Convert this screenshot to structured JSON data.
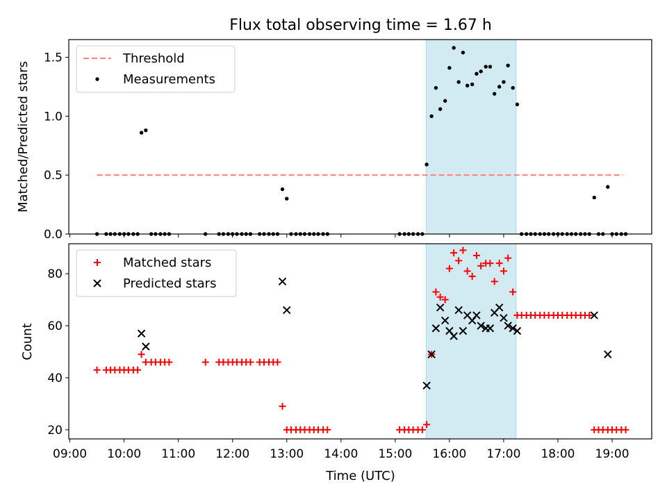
{
  "chart_data": {
    "title": "Flux total observing time = 1.67 h",
    "xlabel": "Time (UTC)",
    "x_tick_labels": [
      "09:00",
      "10:00",
      "11:00",
      "12:00",
      "13:00",
      "14:00",
      "15:00",
      "16:00",
      "17:00",
      "18:00",
      "19:00"
    ],
    "x_ticks_hours": [
      9,
      10,
      11,
      12,
      13,
      14,
      15,
      16,
      17,
      18,
      19
    ],
    "xlim_hours": [
      8.98,
      19.73
    ],
    "highlight_span_hours": [
      15.57,
      17.23
    ],
    "highlight_color": "#add8e6",
    "panels": [
      {
        "type": "scatter",
        "ylabel": "Matched/Predicted stars",
        "ylim": [
          0,
          1.65
        ],
        "y_ticks": [
          0,
          0.5,
          1.0,
          1.5
        ],
        "y_tick_labels": [
          "0.0",
          "0.5",
          "1.0",
          "1.5"
        ],
        "legend": {
          "position": "upper-left",
          "entries": [
            "Threshold",
            "Measurements"
          ]
        },
        "threshold": {
          "name": "Threshold",
          "y": 0.5,
          "x_range": [
            9.5,
            19.2
          ],
          "color": "#ff7f7f"
        },
        "series": [
          {
            "name": "Measurements",
            "color": "#000000",
            "marker": "dot",
            "points": [
              [
                9.5,
                0
              ],
              [
                9.67,
                0
              ],
              [
                9.75,
                0
              ],
              [
                9.83,
                0
              ],
              [
                9.92,
                0
              ],
              [
                10.0,
                0
              ],
              [
                10.08,
                0
              ],
              [
                10.17,
                0
              ],
              [
                10.25,
                0
              ],
              [
                10.32,
                0.86
              ],
              [
                10.4,
                0.88
              ],
              [
                10.5,
                0
              ],
              [
                10.58,
                0
              ],
              [
                10.67,
                0
              ],
              [
                10.75,
                0
              ],
              [
                10.83,
                0
              ],
              [
                11.5,
                0
              ],
              [
                11.75,
                0
              ],
              [
                11.83,
                0
              ],
              [
                11.92,
                0
              ],
              [
                12.0,
                0
              ],
              [
                12.08,
                0
              ],
              [
                12.17,
                0
              ],
              [
                12.25,
                0
              ],
              [
                12.33,
                0
              ],
              [
                12.5,
                0
              ],
              [
                12.58,
                0
              ],
              [
                12.67,
                0
              ],
              [
                12.75,
                0
              ],
              [
                12.83,
                0
              ],
              [
                12.92,
                0.38
              ],
              [
                13.0,
                0.3
              ],
              [
                13.08,
                0
              ],
              [
                13.17,
                0
              ],
              [
                13.25,
                0
              ],
              [
                13.33,
                0
              ],
              [
                13.42,
                0
              ],
              [
                13.5,
                0
              ],
              [
                13.58,
                0
              ],
              [
                13.67,
                0
              ],
              [
                13.75,
                0
              ],
              [
                15.08,
                0
              ],
              [
                15.17,
                0
              ],
              [
                15.25,
                0
              ],
              [
                15.33,
                0
              ],
              [
                15.42,
                0
              ],
              [
                15.5,
                0
              ],
              [
                15.58,
                0.59
              ],
              [
                15.67,
                1.0
              ],
              [
                15.75,
                1.24
              ],
              [
                15.83,
                1.06
              ],
              [
                15.92,
                1.13
              ],
              [
                16.0,
                1.41
              ],
              [
                16.08,
                1.58
              ],
              [
                16.17,
                1.29
              ],
              [
                16.25,
                1.54
              ],
              [
                16.33,
                1.26
              ],
              [
                16.42,
                1.27
              ],
              [
                16.5,
                1.36
              ],
              [
                16.58,
                1.38
              ],
              [
                16.67,
                1.42
              ],
              [
                16.75,
                1.42
              ],
              [
                16.83,
                1.19
              ],
              [
                16.92,
                1.25
              ],
              [
                17.0,
                1.29
              ],
              [
                17.08,
                1.43
              ],
              [
                17.17,
                1.24
              ],
              [
                17.25,
                1.1
              ],
              [
                17.33,
                0
              ],
              [
                17.42,
                0
              ],
              [
                17.5,
                0
              ],
              [
                17.58,
                0
              ],
              [
                17.67,
                0
              ],
              [
                17.75,
                0
              ],
              [
                17.83,
                0
              ],
              [
                17.92,
                0
              ],
              [
                18.0,
                0
              ],
              [
                18.08,
                0
              ],
              [
                18.17,
                0
              ],
              [
                18.25,
                0
              ],
              [
                18.33,
                0
              ],
              [
                18.42,
                0
              ],
              [
                18.5,
                0
              ],
              [
                18.58,
                0
              ],
              [
                18.67,
                0.31
              ],
              [
                18.75,
                0
              ],
              [
                18.83,
                0
              ],
              [
                18.92,
                0.4
              ],
              [
                19.0,
                0
              ],
              [
                19.08,
                0
              ],
              [
                19.17,
                0
              ],
              [
                19.25,
                0
              ]
            ]
          }
        ]
      },
      {
        "type": "scatter",
        "ylabel": "Count",
        "ylim": [
          16.5,
          91.5
        ],
        "y_ticks": [
          20,
          40,
          60,
          80
        ],
        "y_tick_labels": [
          "20",
          "40",
          "60",
          "80"
        ],
        "legend": {
          "position": "upper-left",
          "entries": [
            "Matched stars",
            "Predicted stars"
          ]
        },
        "series": [
          {
            "name": "Matched stars",
            "color": "#ff0000",
            "marker": "plus",
            "points": [
              [
                9.5,
                43
              ],
              [
                9.67,
                43
              ],
              [
                9.75,
                43
              ],
              [
                9.83,
                43
              ],
              [
                9.92,
                43
              ],
              [
                10.0,
                43
              ],
              [
                10.08,
                43
              ],
              [
                10.17,
                43
              ],
              [
                10.25,
                43
              ],
              [
                10.32,
                49
              ],
              [
                10.4,
                46
              ],
              [
                10.5,
                46
              ],
              [
                10.58,
                46
              ],
              [
                10.67,
                46
              ],
              [
                10.75,
                46
              ],
              [
                10.83,
                46
              ],
              [
                11.5,
                46
              ],
              [
                11.75,
                46
              ],
              [
                11.83,
                46
              ],
              [
                11.92,
                46
              ],
              [
                12.0,
                46
              ],
              [
                12.08,
                46
              ],
              [
                12.17,
                46
              ],
              [
                12.25,
                46
              ],
              [
                12.33,
                46
              ],
              [
                12.5,
                46
              ],
              [
                12.58,
                46
              ],
              [
                12.67,
                46
              ],
              [
                12.75,
                46
              ],
              [
                12.83,
                46
              ],
              [
                12.92,
                29
              ],
              [
                13.0,
                20
              ],
              [
                13.08,
                20
              ],
              [
                13.17,
                20
              ],
              [
                13.25,
                20
              ],
              [
                13.33,
                20
              ],
              [
                13.42,
                20
              ],
              [
                13.5,
                20
              ],
              [
                13.58,
                20
              ],
              [
                13.67,
                20
              ],
              [
                13.75,
                20
              ],
              [
                15.08,
                20
              ],
              [
                15.17,
                20
              ],
              [
                15.25,
                20
              ],
              [
                15.33,
                20
              ],
              [
                15.42,
                20
              ],
              [
                15.5,
                20
              ],
              [
                15.58,
                22
              ],
              [
                15.67,
                49
              ],
              [
                15.75,
                73
              ],
              [
                15.83,
                71
              ],
              [
                15.92,
                70
              ],
              [
                16.0,
                82
              ],
              [
                16.08,
                88
              ],
              [
                16.17,
                85
              ],
              [
                16.25,
                89
              ],
              [
                16.33,
                81
              ],
              [
                16.42,
                79
              ],
              [
                16.5,
                87
              ],
              [
                16.58,
                83
              ],
              [
                16.67,
                84
              ],
              [
                16.75,
                84
              ],
              [
                16.83,
                77
              ],
              [
                16.92,
                84
              ],
              [
                17.0,
                81
              ],
              [
                17.08,
                86
              ],
              [
                17.17,
                73
              ],
              [
                17.25,
                64
              ],
              [
                17.33,
                64
              ],
              [
                17.42,
                64
              ],
              [
                17.5,
                64
              ],
              [
                17.58,
                64
              ],
              [
                17.67,
                64
              ],
              [
                17.75,
                64
              ],
              [
                17.83,
                64
              ],
              [
                17.92,
                64
              ],
              [
                18.0,
                64
              ],
              [
                18.08,
                64
              ],
              [
                18.17,
                64
              ],
              [
                18.25,
                64
              ],
              [
                18.33,
                64
              ],
              [
                18.42,
                64
              ],
              [
                18.5,
                64
              ],
              [
                18.58,
                64
              ],
              [
                18.67,
                20
              ],
              [
                18.75,
                20
              ],
              [
                18.83,
                20
              ],
              [
                18.92,
                20
              ],
              [
                19.0,
                20
              ],
              [
                19.08,
                20
              ],
              [
                19.17,
                20
              ],
              [
                19.25,
                20
              ]
            ]
          },
          {
            "name": "Predicted stars",
            "color": "#000000",
            "marker": "x",
            "points": [
              [
                10.32,
                57
              ],
              [
                10.4,
                52
              ],
              [
                12.92,
                77
              ],
              [
                13.0,
                66
              ],
              [
                15.58,
                37
              ],
              [
                15.67,
                49
              ],
              [
                15.75,
                59
              ],
              [
                15.83,
                67
              ],
              [
                15.92,
                62
              ],
              [
                16.0,
                58
              ],
              [
                16.08,
                56
              ],
              [
                16.17,
                66
              ],
              [
                16.25,
                58
              ],
              [
                16.33,
                64
              ],
              [
                16.42,
                62
              ],
              [
                16.5,
                64
              ],
              [
                16.58,
                60
              ],
              [
                16.67,
                59
              ],
              [
                16.75,
                59
              ],
              [
                16.83,
                65
              ],
              [
                16.92,
                67
              ],
              [
                17.0,
                63
              ],
              [
                17.08,
                60
              ],
              [
                17.17,
                59
              ],
              [
                17.25,
                58
              ],
              [
                18.67,
                64
              ],
              [
                18.92,
                49
              ]
            ]
          }
        ]
      }
    ]
  }
}
